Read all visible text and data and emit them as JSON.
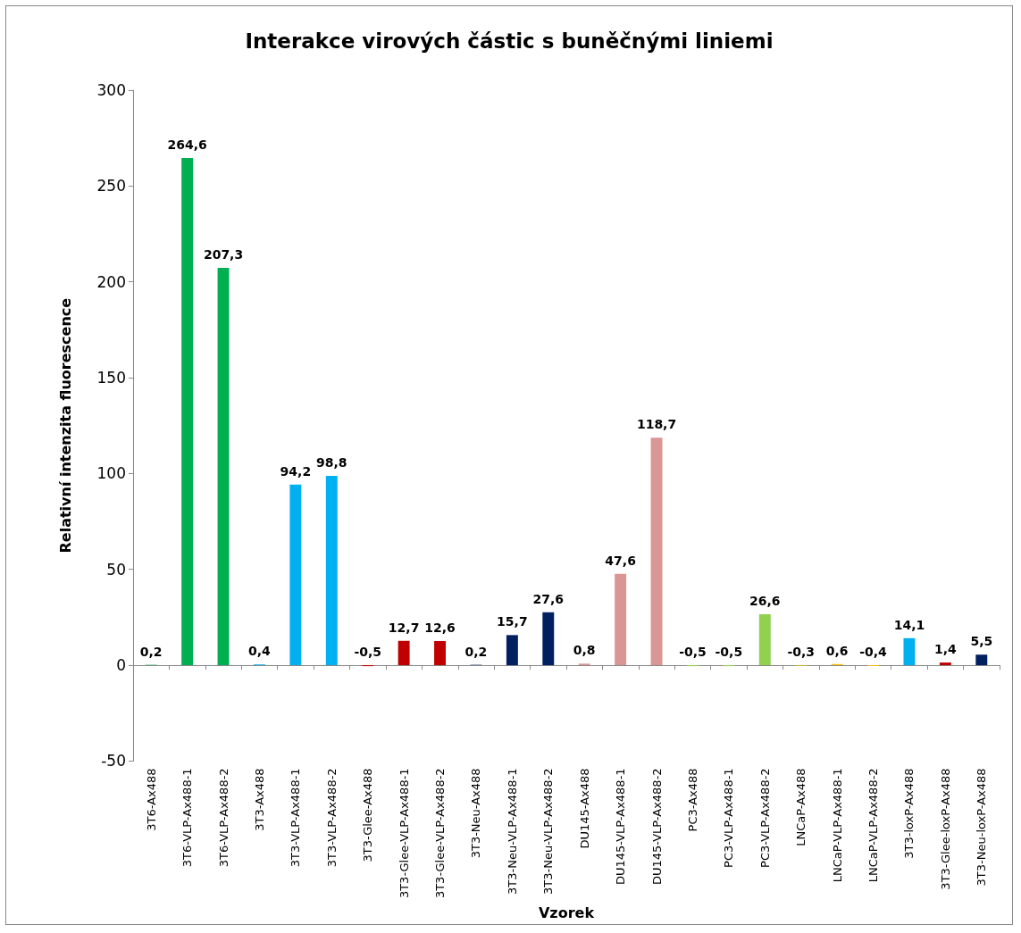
{
  "chart_data": {
    "type": "bar",
    "title": "Interakce virových částic s buněčnými liniemi",
    "xlabel": "Vzorek",
    "ylabel": "Relativní intenzita fluorescence",
    "categories": [
      "3T6-Ax488",
      "3T6-VLP-Ax488-1",
      "3T6-VLP-Ax488-2",
      "3T3-Ax488",
      "3T3-VLP-Ax488-1",
      "3T3-VLP-Ax488-2",
      "3T3-Glee-Ax488",
      "3T3-Glee-VLP-Ax488-1",
      "3T3-Glee-VLP-Ax488-2",
      "3T3-Neu-Ax488",
      "3T3-Neu-VLP-Ax488-1",
      "3T3-Neu-VLP-Ax488-2",
      "DU145-Ax488",
      "DU145-VLP-Ax488-1",
      "DU145-VLP-Ax488-2",
      "PC3-Ax488",
      "PC3-VLP-Ax488-1",
      "PC3-VLP-Ax488-2",
      "LNCaP-Ax488",
      "LNCaP-VLP-Ax488-1",
      "LNCaP-VLP-Ax488-2",
      "3T3-loxP-Ax488",
      "3T3-Glee-loxP-Ax488",
      "3T3-Neu-loxP-Ax488"
    ],
    "values": [
      0.2,
      264.6,
      207.3,
      0.4,
      94.2,
      98.8,
      -0.5,
      12.7,
      12.6,
      0.2,
      15.7,
      27.6,
      0.8,
      47.6,
      118.7,
      -0.5,
      -0.5,
      26.6,
      -0.3,
      0.6,
      -0.4,
      14.1,
      1.4,
      5.5
    ],
    "value_labels": [
      "0,2",
      "264,6",
      "207,3",
      "0,4",
      "94,2",
      "98,8",
      "-0,5",
      "12,7",
      "12,6",
      "0,2",
      "15,7",
      "27,6",
      "0,8",
      "47,6",
      "118,7",
      "-0,5",
      "-0,5",
      "26,6",
      "-0,3",
      "0,6",
      "-0,4",
      "14,1",
      "1,4",
      "5,5"
    ],
    "colors": [
      "#00b050",
      "#00b050",
      "#00b050",
      "#00b0f0",
      "#00b0f0",
      "#00b0f0",
      "#c00000",
      "#c00000",
      "#c00000",
      "#002060",
      "#002060",
      "#002060",
      "#d99694",
      "#d99694",
      "#d99694",
      "#92d050",
      "#92d050",
      "#92d050",
      "#ffc000",
      "#ffc000",
      "#ffc000",
      "#00b0f0",
      "#c00000",
      "#002060"
    ],
    "ylim": [
      -50,
      300
    ],
    "yticks": [
      -50,
      0,
      50,
      100,
      150,
      200,
      250,
      300
    ]
  }
}
